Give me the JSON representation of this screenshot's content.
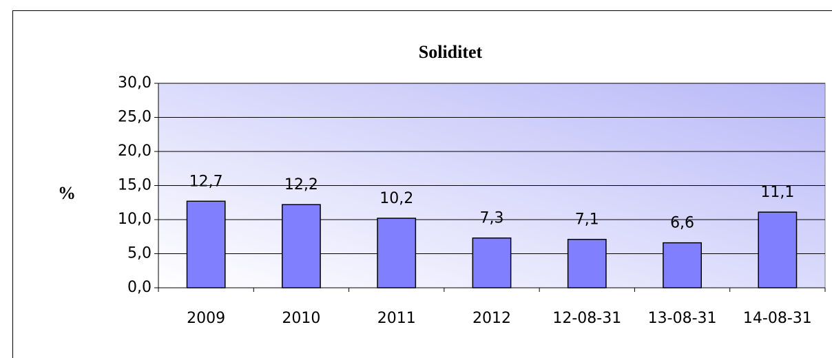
{
  "chart_data": {
    "type": "bar",
    "title": "Soliditet",
    "ylabel": "%",
    "categories": [
      "2009",
      "2010",
      "2011",
      "2012",
      "12-08-31",
      "13-08-31",
      "14-08-31"
    ],
    "values": [
      12.7,
      12.2,
      10.2,
      7.3,
      7.1,
      6.6,
      11.1
    ],
    "value_labels": [
      "12,7",
      "12,2",
      "10,2",
      "7,3",
      "7,1",
      "6,6",
      "11,1"
    ],
    "color": "#8080ff",
    "ylim": [
      0,
      30
    ],
    "yticks": [
      {
        "value": 0,
        "label": "0,0"
      },
      {
        "value": 5,
        "label": "5,0"
      },
      {
        "value": 10,
        "label": "10,0"
      },
      {
        "value": 15,
        "label": "15,0"
      },
      {
        "value": 20,
        "label": "20,0"
      },
      {
        "value": 25,
        "label": "25,0"
      },
      {
        "value": 30,
        "label": "30,0"
      }
    ],
    "grid": true
  }
}
